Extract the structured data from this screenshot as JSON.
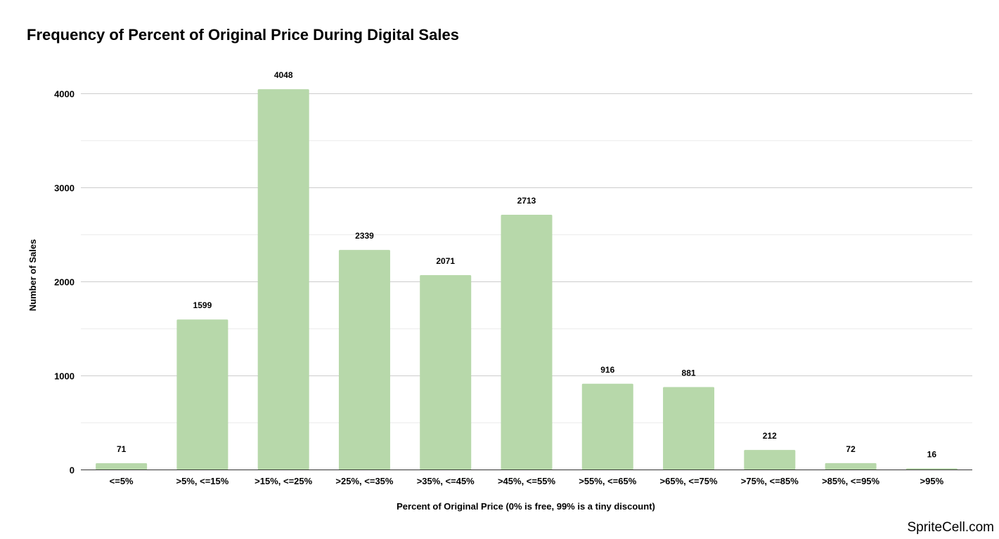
{
  "chart_data": {
    "type": "bar",
    "title": "Frequency of Percent of Original Price During Digital Sales",
    "xlabel": "Percent of Original Price (0% is free, 99% is a tiny discount)",
    "ylabel": "Number of Sales",
    "categories": [
      "<=5%",
      ">5%, <=15%",
      ">15%, <=25%",
      ">25%, <=35%",
      ">35%, <=45%",
      ">45%, <=55%",
      ">55%, <=65%",
      ">65%, <=75%",
      ">75%, <=85%",
      ">85%, <=95%",
      ">95%"
    ],
    "values": [
      71,
      1599,
      4048,
      2339,
      2071,
      2713,
      916,
      881,
      212,
      72,
      16
    ],
    "data_labels": [
      "71",
      "1599",
      "4048",
      "2339",
      "2071",
      "2713",
      "916",
      "881",
      "212",
      "72",
      "16"
    ],
    "ylim": [
      0,
      4000
    ],
    "yticks": [
      0,
      1000,
      2000,
      3000,
      4000
    ],
    "ytick_labels": [
      "0",
      "1000",
      "2000",
      "3000",
      "4000"
    ],
    "minor_gridlines": true,
    "grid": true,
    "bar_color": "#b7d8aa",
    "gridline_color": "#cccccc"
  },
  "watermark": "SpriteCell.com"
}
